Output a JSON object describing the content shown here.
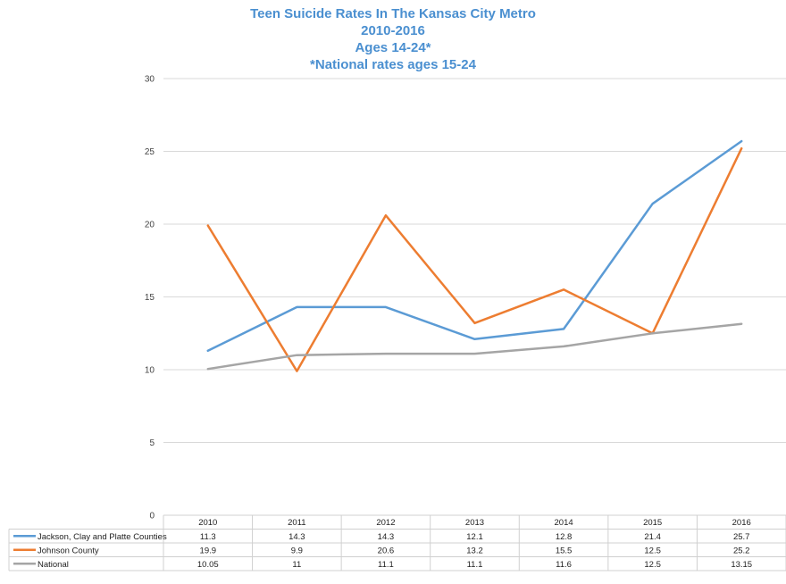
{
  "chart_data": {
    "type": "line",
    "title": [
      "Teen Suicide Rates In The Kansas City Metro",
      "2010-2016",
      "Ages 14-24*",
      "*National rates ages 15-24"
    ],
    "categories": [
      "2010",
      "2011",
      "2012",
      "2013",
      "2014",
      "2015",
      "2016"
    ],
    "ylim": [
      0,
      30
    ],
    "yticks": [
      0,
      5,
      10,
      15,
      20,
      25,
      30
    ],
    "grid": true,
    "legend": "data-table-bottom",
    "series": [
      {
        "name": "Jackson, Clay and Platte Counties",
        "color": "#5b9bd5",
        "values": [
          11.3,
          14.3,
          14.3,
          12.1,
          12.8,
          21.4,
          25.7
        ],
        "labels": [
          "11.3",
          "14.3",
          "14.3",
          "12.1",
          "12.8",
          "21.4",
          "25.7"
        ]
      },
      {
        "name": "Johnson County",
        "color": "#ed7d31",
        "values": [
          19.9,
          9.9,
          20.6,
          13.2,
          15.5,
          12.5,
          25.2
        ],
        "labels": [
          "19.9",
          "9.9",
          "20.6",
          "13.2",
          "15.5",
          "12.5",
          "25.2"
        ]
      },
      {
        "name": "National",
        "color": "#a5a5a5",
        "values": [
          10.05,
          11,
          11.1,
          11.1,
          11.6,
          12.5,
          13.15
        ],
        "labels": [
          "10.05",
          "11",
          "11.1",
          "11.1",
          "11.6",
          "12.5",
          "13.15"
        ]
      }
    ]
  }
}
